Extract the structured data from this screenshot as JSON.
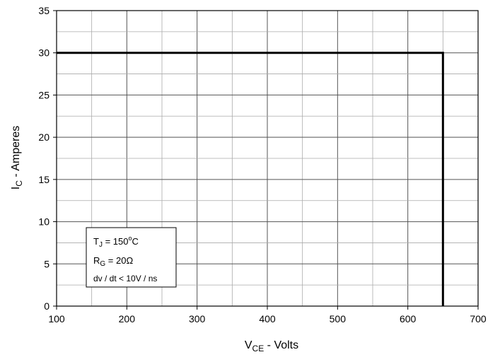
{
  "chart_data": {
    "type": "line",
    "title": "",
    "xlabel": {
      "main": "V",
      "sub": "CE",
      "tail": " - Volts"
    },
    "ylabel": {
      "main": "I",
      "sub": "C",
      "tail": " - Amperes"
    },
    "xlim": [
      100,
      700
    ],
    "ylim": [
      0,
      35
    ],
    "x_ticks": [
      100,
      200,
      300,
      400,
      500,
      600,
      700
    ],
    "y_ticks": [
      0,
      5,
      10,
      15,
      20,
      25,
      30,
      35
    ],
    "grid": true,
    "minor_x_step": 50,
    "minor_y_step": 2.5,
    "series": [
      {
        "x": [
          100,
          650,
          650
        ],
        "y": [
          30,
          30,
          0
        ]
      }
    ],
    "annotation": {
      "placement": "lower-left",
      "lines": [
        {
          "main": "T",
          "sub": "J",
          "tail": " = 150",
          "sup": "o",
          "tail2": "C"
        },
        {
          "main": "R",
          "sub": "G",
          "tail": " = 20Ω"
        },
        {
          "main": "dv / dt < 10V / ns"
        }
      ]
    }
  }
}
